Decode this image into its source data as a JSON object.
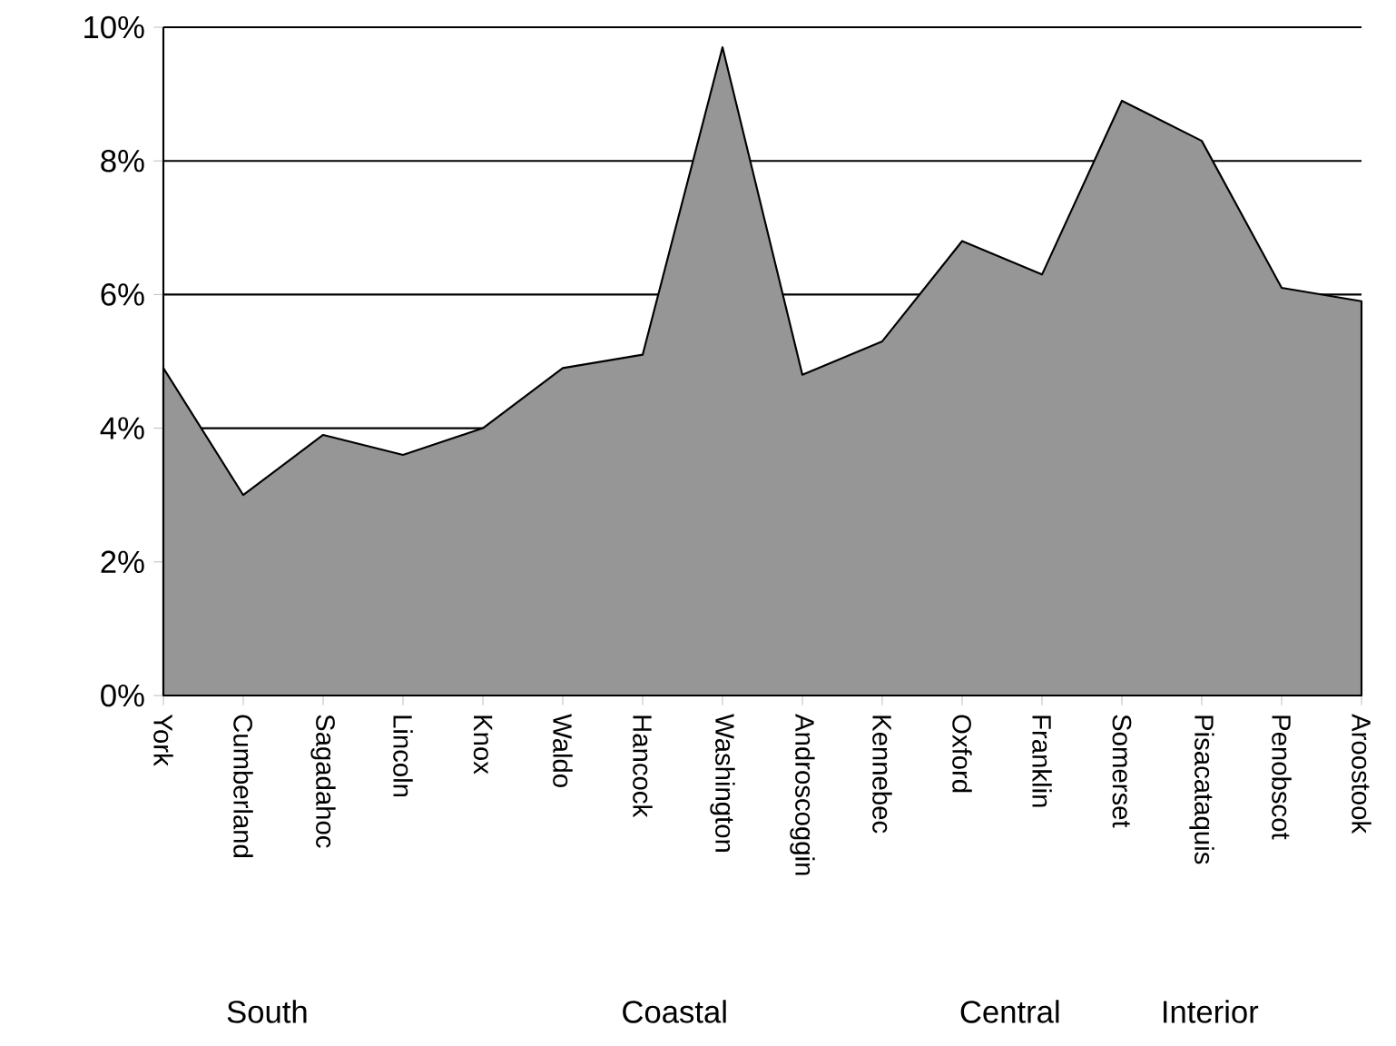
{
  "chart_data": {
    "type": "area",
    "categories": [
      "York",
      "Cumberland",
      "Sagadahoc",
      "Lincoln",
      "Knox",
      "Waldo",
      "Hancock",
      "Washington",
      "Androscoggin",
      "Kennebec",
      "Oxford",
      "Franklin",
      "Somerset",
      "Pisacataquis",
      "Penobscot",
      "Aroostook"
    ],
    "values": [
      4.9,
      3.0,
      3.9,
      3.6,
      4.0,
      4.9,
      5.1,
      9.7,
      4.8,
      5.3,
      6.8,
      6.3,
      8.9,
      8.3,
      6.1,
      5.9
    ],
    "color": "#969696",
    "ylim": [
      0,
      10
    ],
    "yticks": [
      {
        "value": 0,
        "label": "0%"
      },
      {
        "value": 2,
        "label": "2%"
      },
      {
        "value": 4,
        "label": "4%"
      },
      {
        "value": 6,
        "label": "6%"
      },
      {
        "value": 8,
        "label": "8%"
      },
      {
        "value": 10,
        "label": "10%"
      }
    ],
    "grid": "y",
    "annotations": [
      "South",
      "Coastal",
      "Central",
      "Interior"
    ]
  }
}
